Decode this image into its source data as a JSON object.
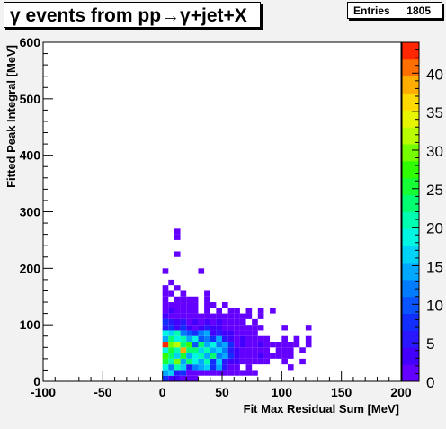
{
  "title": "γ events from pp→γ+jet+X",
  "stats": {
    "label": "Entries",
    "value": "1805"
  },
  "chart_data": {
    "type": "heatmap",
    "title": "γ events from pp→γ+jet+X",
    "xlabel": "Fit Max Residual Sum [MeV]",
    "ylabel": "Fitted Peak Integral [MeV]",
    "xlim": [
      -100,
      200
    ],
    "ylim": [
      0,
      600
    ],
    "x_ticks": [
      "-100",
      "-50",
      "0",
      "50",
      "100",
      "150",
      "200"
    ],
    "y_ticks": [
      "0",
      "100",
      "200",
      "300",
      "400",
      "500",
      "600"
    ],
    "z_ticks": [
      "0",
      "5",
      "10",
      "15",
      "20",
      "25",
      "30",
      "35",
      "40"
    ],
    "zlim": [
      0,
      44
    ],
    "bin_width_x": 5,
    "bin_width_y": 10,
    "cells": [
      [
        0,
        0,
        8
      ],
      [
        5,
        0,
        4
      ],
      [
        10,
        0,
        4
      ],
      [
        15,
        0,
        2
      ],
      [
        20,
        0,
        2
      ],
      [
        25,
        0,
        2
      ],
      [
        0,
        10,
        14
      ],
      [
        5,
        10,
        16
      ],
      [
        10,
        10,
        6
      ],
      [
        15,
        10,
        8
      ],
      [
        20,
        10,
        2
      ],
      [
        25,
        10,
        2
      ],
      [
        30,
        10,
        2
      ],
      [
        35,
        10,
        2
      ],
      [
        40,
        10,
        2
      ],
      [
        45,
        10,
        2
      ],
      [
        50,
        10,
        2
      ],
      [
        55,
        10,
        2
      ],
      [
        60,
        10,
        2
      ],
      [
        65,
        10,
        2
      ],
      [
        70,
        10,
        2
      ],
      [
        75,
        10,
        2
      ],
      [
        0,
        20,
        18
      ],
      [
        5,
        20,
        12
      ],
      [
        10,
        20,
        20
      ],
      [
        15,
        20,
        16
      ],
      [
        20,
        20,
        6
      ],
      [
        25,
        20,
        12
      ],
      [
        30,
        20,
        14
      ],
      [
        35,
        20,
        16
      ],
      [
        40,
        20,
        8
      ],
      [
        45,
        20,
        14
      ],
      [
        50,
        20,
        6
      ],
      [
        55,
        20,
        2
      ],
      [
        60,
        20,
        2
      ],
      [
        70,
        20,
        2
      ],
      [
        105,
        20,
        2
      ],
      [
        0,
        30,
        26
      ],
      [
        5,
        30,
        20
      ],
      [
        10,
        30,
        30
      ],
      [
        15,
        30,
        14
      ],
      [
        20,
        30,
        22
      ],
      [
        25,
        30,
        18
      ],
      [
        30,
        30,
        14
      ],
      [
        35,
        30,
        20
      ],
      [
        40,
        30,
        8
      ],
      [
        45,
        30,
        16
      ],
      [
        50,
        30,
        6
      ],
      [
        55,
        30,
        4
      ],
      [
        60,
        30,
        4
      ],
      [
        65,
        30,
        2
      ],
      [
        70,
        30,
        2
      ],
      [
        75,
        30,
        2
      ],
      [
        80,
        30,
        2
      ],
      [
        85,
        30,
        2
      ],
      [
        100,
        30,
        2
      ],
      [
        115,
        30,
        2
      ],
      [
        0,
        40,
        28
      ],
      [
        5,
        40,
        22
      ],
      [
        10,
        40,
        16
      ],
      [
        15,
        40,
        26
      ],
      [
        20,
        40,
        14
      ],
      [
        25,
        40,
        18
      ],
      [
        30,
        40,
        20
      ],
      [
        35,
        40,
        14
      ],
      [
        40,
        40,
        22
      ],
      [
        45,
        40,
        12
      ],
      [
        50,
        40,
        14
      ],
      [
        55,
        40,
        8
      ],
      [
        60,
        40,
        4
      ],
      [
        65,
        40,
        2
      ],
      [
        70,
        40,
        2
      ],
      [
        75,
        40,
        2
      ],
      [
        80,
        40,
        4
      ],
      [
        85,
        40,
        2
      ],
      [
        90,
        40,
        2
      ],
      [
        95,
        40,
        2
      ],
      [
        100,
        40,
        2
      ],
      [
        105,
        40,
        2
      ],
      [
        0,
        50,
        18
      ],
      [
        5,
        50,
        26
      ],
      [
        10,
        50,
        20
      ],
      [
        15,
        50,
        38
      ],
      [
        20,
        50,
        22
      ],
      [
        25,
        50,
        24
      ],
      [
        30,
        50,
        16
      ],
      [
        35,
        50,
        20
      ],
      [
        40,
        50,
        14
      ],
      [
        45,
        50,
        16
      ],
      [
        50,
        50,
        12
      ],
      [
        55,
        50,
        6
      ],
      [
        60,
        50,
        4
      ],
      [
        65,
        50,
        2
      ],
      [
        70,
        50,
        2
      ],
      [
        75,
        50,
        2
      ],
      [
        80,
        50,
        2
      ],
      [
        85,
        50,
        2
      ],
      [
        95,
        50,
        2
      ],
      [
        100,
        50,
        2
      ],
      [
        105,
        50,
        2
      ],
      [
        115,
        50,
        2
      ],
      [
        0,
        60,
        42
      ],
      [
        5,
        60,
        30
      ],
      [
        10,
        60,
        32
      ],
      [
        15,
        60,
        22
      ],
      [
        20,
        60,
        28
      ],
      [
        25,
        60,
        10
      ],
      [
        30,
        60,
        22
      ],
      [
        35,
        60,
        14
      ],
      [
        40,
        60,
        18
      ],
      [
        45,
        60,
        12
      ],
      [
        50,
        60,
        14
      ],
      [
        55,
        60,
        8
      ],
      [
        60,
        60,
        2
      ],
      [
        65,
        60,
        4
      ],
      [
        70,
        60,
        2
      ],
      [
        75,
        60,
        2
      ],
      [
        80,
        60,
        4
      ],
      [
        85,
        60,
        2
      ],
      [
        90,
        60,
        2
      ],
      [
        95,
        60,
        2
      ],
      [
        100,
        60,
        2
      ],
      [
        105,
        60,
        2
      ],
      [
        110,
        60,
        2
      ],
      [
        120,
        60,
        2
      ],
      [
        0,
        70,
        14
      ],
      [
        5,
        70,
        22
      ],
      [
        10,
        70,
        18
      ],
      [
        15,
        70,
        20
      ],
      [
        20,
        70,
        14
      ],
      [
        25,
        70,
        18
      ],
      [
        30,
        70,
        10
      ],
      [
        35,
        70,
        12
      ],
      [
        40,
        70,
        8
      ],
      [
        45,
        70,
        14
      ],
      [
        50,
        70,
        6
      ],
      [
        55,
        70,
        4
      ],
      [
        60,
        70,
        2
      ],
      [
        65,
        70,
        4
      ],
      [
        70,
        70,
        2
      ],
      [
        75,
        70,
        2
      ],
      [
        80,
        70,
        2
      ],
      [
        85,
        70,
        2
      ],
      [
        100,
        70,
        2
      ],
      [
        110,
        70,
        2
      ],
      [
        120,
        70,
        2
      ],
      [
        0,
        80,
        18
      ],
      [
        5,
        80,
        16
      ],
      [
        10,
        80,
        20
      ],
      [
        15,
        80,
        12
      ],
      [
        20,
        80,
        10
      ],
      [
        25,
        80,
        8
      ],
      [
        30,
        80,
        12
      ],
      [
        35,
        80,
        14
      ],
      [
        40,
        80,
        4
      ],
      [
        45,
        80,
        6
      ],
      [
        50,
        80,
        4
      ],
      [
        55,
        80,
        4
      ],
      [
        60,
        80,
        2
      ],
      [
        65,
        80,
        2
      ],
      [
        70,
        80,
        2
      ],
      [
        75,
        80,
        2
      ],
      [
        0,
        90,
        6
      ],
      [
        5,
        90,
        8
      ],
      [
        10,
        90,
        4
      ],
      [
        15,
        90,
        8
      ],
      [
        20,
        90,
        4
      ],
      [
        25,
        90,
        2
      ],
      [
        30,
        90,
        4
      ],
      [
        35,
        90,
        6
      ],
      [
        40,
        90,
        4
      ],
      [
        45,
        90,
        4
      ],
      [
        50,
        90,
        2
      ],
      [
        55,
        90,
        2
      ],
      [
        60,
        90,
        2
      ],
      [
        65,
        90,
        2
      ],
      [
        70,
        90,
        2
      ],
      [
        75,
        90,
        2
      ],
      [
        80,
        90,
        2
      ],
      [
        100,
        90,
        2
      ],
      [
        120,
        90,
        2
      ],
      [
        0,
        100,
        8
      ],
      [
        5,
        100,
        6
      ],
      [
        10,
        100,
        4
      ],
      [
        15,
        100,
        6
      ],
      [
        20,
        100,
        2
      ],
      [
        25,
        100,
        4
      ],
      [
        30,
        100,
        2
      ],
      [
        35,
        100,
        4
      ],
      [
        40,
        100,
        2
      ],
      [
        45,
        100,
        4
      ],
      [
        50,
        100,
        2
      ],
      [
        55,
        100,
        2
      ],
      [
        60,
        100,
        2
      ],
      [
        65,
        100,
        2
      ],
      [
        75,
        100,
        2
      ],
      [
        0,
        110,
        4
      ],
      [
        5,
        110,
        2
      ],
      [
        10,
        110,
        2
      ],
      [
        15,
        110,
        2
      ],
      [
        20,
        110,
        2
      ],
      [
        25,
        110,
        2
      ],
      [
        30,
        110,
        2
      ],
      [
        35,
        110,
        2
      ],
      [
        40,
        110,
        2
      ],
      [
        45,
        110,
        2
      ],
      [
        50,
        110,
        2
      ],
      [
        55,
        110,
        2
      ],
      [
        60,
        110,
        2
      ],
      [
        65,
        110,
        2
      ],
      [
        70,
        110,
        2
      ],
      [
        80,
        110,
        2
      ],
      [
        0,
        120,
        2
      ],
      [
        5,
        120,
        4
      ],
      [
        10,
        120,
        2
      ],
      [
        15,
        120,
        2
      ],
      [
        20,
        120,
        2
      ],
      [
        25,
        120,
        2
      ],
      [
        35,
        120,
        2
      ],
      [
        45,
        120,
        2
      ],
      [
        55,
        120,
        2
      ],
      [
        60,
        120,
        2
      ],
      [
        70,
        120,
        2
      ],
      [
        80,
        120,
        2
      ],
      [
        90,
        120,
        2
      ],
      [
        0,
        130,
        2
      ],
      [
        5,
        130,
        2
      ],
      [
        10,
        130,
        2
      ],
      [
        15,
        130,
        2
      ],
      [
        20,
        130,
        2
      ],
      [
        25,
        130,
        2
      ],
      [
        35,
        130,
        2
      ],
      [
        40,
        130,
        2
      ],
      [
        50,
        130,
        2
      ],
      [
        0,
        140,
        2
      ],
      [
        10,
        140,
        2
      ],
      [
        15,
        140,
        2
      ],
      [
        20,
        140,
        2
      ],
      [
        25,
        140,
        2
      ],
      [
        35,
        140,
        2
      ],
      [
        0,
        150,
        2
      ],
      [
        5,
        150,
        2
      ],
      [
        15,
        150,
        2
      ],
      [
        35,
        150,
        2
      ],
      [
        0,
        160,
        2
      ],
      [
        10,
        160,
        2
      ],
      [
        5,
        170,
        2
      ],
      [
        30,
        190,
        2
      ],
      [
        0,
        190,
        2
      ],
      [
        10,
        220,
        2
      ],
      [
        10,
        250,
        2
      ],
      [
        10,
        260,
        2
      ]
    ]
  }
}
